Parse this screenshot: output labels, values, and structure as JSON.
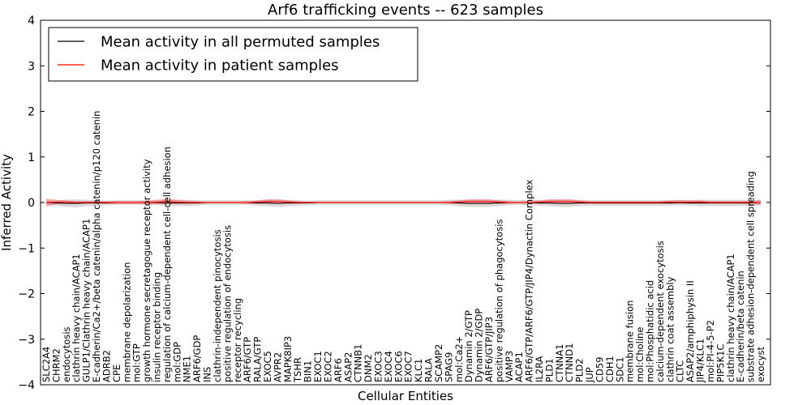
{
  "chart_data": {
    "type": "line",
    "title": "Arf6 trafficking events -- 623 samples",
    "xlabel": "Cellular Entities",
    "ylabel": "Inferred Activity",
    "ylim": [
      -4,
      4
    ],
    "yticks": [
      "4",
      "3",
      "2",
      "1",
      "0",
      "−1",
      "−2",
      "−3",
      "−4"
    ],
    "legend": {
      "position": "top-left",
      "entries": [
        {
          "label": "Mean activity in all permuted samples",
          "color": "#000000"
        },
        {
          "label": "Mean activity in patient samples",
          "color": "#ff0000"
        }
      ]
    },
    "categories": [
      "SLC2A4",
      "CHRM2",
      "endocytosis",
      "clathrin heavy chain/ACAP1",
      "GULP1/Clathrin heavy chain/ACAP1",
      "E-cadherin/Ca2+/beta catenin/alpha catenin/p120 catenin",
      "ADRB2",
      "CPE",
      "membrane depolarization",
      "mol:GTP",
      "growth hormone secretagogue receptor activity",
      "insulin receptor binding",
      "regulation of calcium-dependent cell-cell adhesion",
      "mol:GDP",
      "NME1",
      "ARF6/GDP",
      "INS",
      "clathrin-independent pinocytosis",
      "positive regulation of endocytosis",
      "receptor recycling",
      "ARF6/GTP",
      "RALA/GTP",
      "EXOC5",
      "AVPR2",
      "MAPK8IP3",
      "TSHR",
      "BIN1",
      "EXOC1",
      "EXOC2",
      "ARF6",
      "ASAP2",
      "CTNNB1",
      "DNM2",
      "EXOC3",
      "EXOC4",
      "EXOC6",
      "EXOC7",
      "KLC1",
      "RALA",
      "SCAMP2",
      "SPAG9",
      "mol:Ca2+",
      "Dynamin 2/GTP",
      "Dynamin 2/GDP",
      "ARF6/GTP/JIP3",
      "positive regulation of phagocytosis",
      "VAMP3",
      "ACAP1",
      "ARF6/GTP/ARF6/GTP/JIP4/Dynactin Complex",
      "IL2RA",
      "PLD1",
      "CTNNA1",
      "CTNND1",
      "PLD2",
      "JUP",
      "CD59",
      "CDH1",
      "SDC1",
      "membrane fusion",
      "mol:Choline",
      "mol:Phosphatidic acid",
      "calcium-dependent exocytosis",
      "clathrin coat assembly",
      "CLTC",
      "ASAP2/amphiphysin II",
      "JIP4/KLC1",
      "mol:PI-4-5-P2",
      "PIP5K1C",
      "clathrin heavy chain/ACAP1",
      "E-cadherin/beta catenin",
      "substrate adhesion-dependent cell spreading",
      "exocyst"
    ],
    "series": [
      {
        "name": "Mean activity in all permuted samples",
        "color": "#000000",
        "values": [
          0.0,
          -0.01,
          -0.02,
          -0.02,
          -0.01,
          -0.01,
          -0.01,
          0.0,
          0.0,
          0.0,
          0.0,
          0.0,
          -0.01,
          -0.01,
          -0.01,
          -0.01,
          0.0,
          0.0,
          0.0,
          0.0,
          0.0,
          -0.01,
          -0.01,
          -0.02,
          -0.01,
          -0.01,
          -0.01,
          0.0,
          0.0,
          0.0,
          0.0,
          0.0,
          0.0,
          0.0,
          0.0,
          0.0,
          0.0,
          0.0,
          0.0,
          0.0,
          0.0,
          -0.01,
          -0.02,
          -0.02,
          -0.02,
          -0.01,
          0.0,
          0.0,
          0.0,
          -0.01,
          -0.01,
          -0.02,
          -0.02,
          -0.01,
          -0.01,
          -0.01,
          -0.01,
          -0.01,
          -0.01,
          -0.01,
          -0.01,
          -0.01,
          -0.01,
          0.0,
          -0.01,
          -0.01,
          -0.01,
          -0.01,
          -0.01,
          -0.01,
          -0.01,
          0.0
        ],
        "spread": [
          0.04,
          0.06,
          0.08,
          0.09,
          0.07,
          0.06,
          0.05,
          0.05,
          0.05,
          0.05,
          0.05,
          0.05,
          0.06,
          0.07,
          0.07,
          0.06,
          0.05,
          0.05,
          0.05,
          0.05,
          0.05,
          0.06,
          0.07,
          0.08,
          0.07,
          0.06,
          0.05,
          0.05,
          0.05,
          0.05,
          0.05,
          0.05,
          0.05,
          0.05,
          0.05,
          0.05,
          0.05,
          0.05,
          0.05,
          0.05,
          0.06,
          0.07,
          0.08,
          0.08,
          0.08,
          0.07,
          0.06,
          0.05,
          0.06,
          0.06,
          0.07,
          0.08,
          0.08,
          0.07,
          0.06,
          0.06,
          0.06,
          0.06,
          0.06,
          0.06,
          0.06,
          0.06,
          0.06,
          0.06,
          0.06,
          0.07,
          0.07,
          0.07,
          0.07,
          0.07,
          0.06,
          0.06
        ]
      },
      {
        "name": "Mean activity in patient samples",
        "color": "#ff0000",
        "values": [
          0.0,
          0.01,
          0.01,
          0.0,
          0.0,
          0.0,
          0.0,
          0.0,
          0.0,
          0.0,
          0.0,
          0.01,
          0.02,
          0.01,
          0.0,
          0.0,
          0.0,
          0.0,
          0.0,
          0.0,
          0.0,
          0.01,
          0.02,
          0.02,
          0.01,
          0.0,
          0.0,
          0.0,
          0.0,
          0.0,
          0.0,
          0.0,
          0.0,
          0.0,
          0.0,
          0.0,
          0.0,
          0.0,
          0.0,
          0.0,
          0.0,
          0.01,
          0.02,
          0.02,
          0.02,
          0.01,
          0.0,
          0.0,
          0.0,
          0.01,
          0.02,
          0.02,
          0.02,
          0.01,
          0.0,
          0.0,
          0.0,
          0.0,
          0.0,
          0.0,
          0.0,
          0.0,
          0.01,
          0.01,
          0.01,
          0.01,
          0.0,
          0.0,
          0.0,
          0.0,
          0.0,
          0.0
        ],
        "spread": [
          0.09,
          0.05,
          0.04,
          0.03,
          0.03,
          0.03,
          0.03,
          0.03,
          0.03,
          0.03,
          0.04,
          0.05,
          0.06,
          0.05,
          0.04,
          0.03,
          0.02,
          0.02,
          0.02,
          0.02,
          0.03,
          0.04,
          0.05,
          0.05,
          0.04,
          0.03,
          0.02,
          0.02,
          0.02,
          0.02,
          0.02,
          0.02,
          0.02,
          0.02,
          0.02,
          0.02,
          0.02,
          0.02,
          0.02,
          0.02,
          0.03,
          0.04,
          0.05,
          0.05,
          0.05,
          0.04,
          0.03,
          0.02,
          0.03,
          0.04,
          0.05,
          0.05,
          0.05,
          0.04,
          0.03,
          0.03,
          0.03,
          0.03,
          0.03,
          0.03,
          0.03,
          0.03,
          0.04,
          0.04,
          0.04,
          0.04,
          0.03,
          0.03,
          0.03,
          0.03,
          0.04,
          0.05
        ]
      }
    ]
  }
}
